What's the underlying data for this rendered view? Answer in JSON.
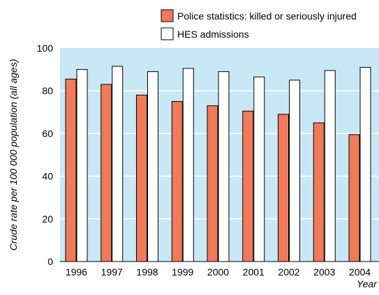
{
  "colors": {
    "plot_background": "#c8e8f6",
    "gridline": "#ffffff",
    "police_bar": "#f07a5a",
    "hes_bar": "#ffffff",
    "bar_outline": "#000000"
  },
  "chart_data": {
    "type": "bar",
    "categories": [
      "1996",
      "1997",
      "1998",
      "1999",
      "2000",
      "2001",
      "2002",
      "2003",
      "2004"
    ],
    "series": [
      {
        "name": "Police statistics: killed or seriously injured",
        "values": [
          85.5,
          83,
          78,
          75,
          73,
          70.5,
          69,
          65,
          59.5
        ]
      },
      {
        "name": "HES admissions",
        "values": [
          90,
          91.5,
          89,
          90.5,
          89,
          86.5,
          85,
          89.5,
          91
        ]
      }
    ],
    "xlabel": "Year",
    "ylabel": "Crude rate per 100 000 population (all ages)",
    "ylim": [
      0,
      100
    ],
    "yticks": [
      "0",
      "20",
      "40",
      "60",
      "80",
      "100"
    ],
    "grid": true,
    "legend_position": "top-right"
  }
}
